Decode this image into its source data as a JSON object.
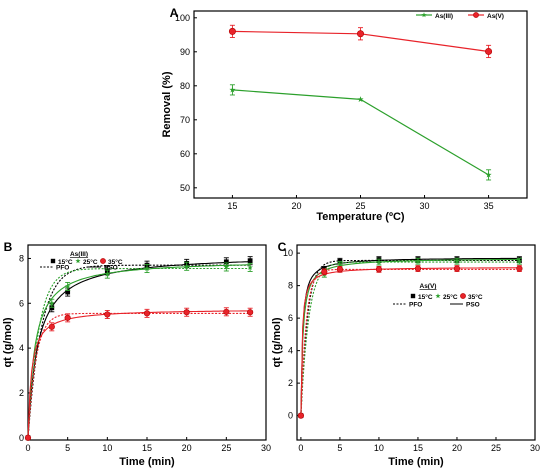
{
  "chart_data": [
    {
      "panel": "A",
      "type": "line",
      "xlabel": "Temperature (ºC)",
      "ylabel": "Removal (%)",
      "xlim": [
        12,
        38
      ],
      "ylim": [
        47,
        102
      ],
      "xticks": [
        15,
        20,
        25,
        30,
        35
      ],
      "yticks": [
        50,
        60,
        70,
        80,
        90,
        100
      ],
      "x": [
        15,
        25,
        35
      ],
      "series": [
        {
          "name": "As(III)",
          "color": "#2ca02c",
          "marker": "star",
          "values": [
            78.8,
            76.0,
            53.8
          ],
          "errors": [
            1.5,
            0,
            1.5
          ]
        },
        {
          "name": "As(V)",
          "color": "#e8232a",
          "marker": "circle",
          "values": [
            96.0,
            95.3,
            90.1
          ],
          "errors": [
            1.8,
            1.8,
            1.8
          ]
        }
      ],
      "legend": "top-right"
    },
    {
      "panel": "B",
      "type": "scatter",
      "xlabel": "Time (min)",
      "ylabel": "qt (g/mol)",
      "xlim": [
        0,
        30
      ],
      "ylim": [
        -0.1,
        8.6
      ],
      "xticks": [
        0,
        5,
        10,
        15,
        20,
        25,
        30
      ],
      "yticks": [
        0,
        2,
        4,
        6,
        8
      ],
      "x": [
        0,
        3,
        5,
        10,
        15,
        20,
        25,
        28
      ],
      "legend_title": "As(III)",
      "temps": [
        "15°C",
        "25°C",
        "35°C"
      ],
      "model_labels": [
        "PFO",
        "PSO"
      ],
      "series": [
        {
          "name": "15°C",
          "color": "#000000",
          "marker": "square",
          "values": [
            0,
            5.8,
            6.5,
            7.45,
            7.7,
            7.78,
            7.85,
            7.9
          ],
          "qe_pfo": 7.7,
          "k_pfo": 0.6,
          "qe_pso": 8.2,
          "k_pso": 0.1
        },
        {
          "name": "25°C",
          "color": "#2ca02c",
          "marker": "star",
          "values": [
            0,
            6.0,
            6.75,
            7.3,
            7.55,
            7.65,
            7.62,
            7.6
          ],
          "qe_pfo": 7.55,
          "k_pfo": 0.75,
          "qe_pso": 7.95,
          "k_pso": 0.15
        },
        {
          "name": "35°C",
          "color": "#e8232a",
          "marker": "circle",
          "values": [
            0,
            4.95,
            5.35,
            5.5,
            5.55,
            5.6,
            5.62,
            5.6
          ],
          "qe_pfo": 5.55,
          "k_pfo": 1.0,
          "qe_pso": 5.75,
          "k_pso": 0.4
        }
      ]
    },
    {
      "panel": "C",
      "type": "scatter",
      "xlabel": "Time (min)",
      "ylabel": "qt (g/mol)",
      "xlim": [
        -0.5,
        30
      ],
      "ylim": [
        -1.5,
        10.5
      ],
      "xticks": [
        0,
        5,
        10,
        15,
        20,
        25,
        30
      ],
      "yticks": [
        0,
        2,
        4,
        6,
        8,
        10
      ],
      "x": [
        0,
        3,
        5,
        10,
        15,
        20,
        28
      ],
      "legend_title": "As(V)",
      "temps": [
        "15°C",
        "25°C",
        "35°C"
      ],
      "model_labels": [
        "PFO",
        "PSO"
      ],
      "series": [
        {
          "name": "15°C",
          "color": "#000000",
          "marker": "square",
          "values": [
            0,
            9.0,
            9.5,
            9.6,
            9.6,
            9.6,
            9.6
          ],
          "qe_pfo": 9.55,
          "k_pfo": 1.2,
          "qe_pso": 9.75,
          "k_pso": 0.5
        },
        {
          "name": "25°C",
          "color": "#2ca02c",
          "marker": "star",
          "values": [
            0,
            8.7,
            9.3,
            9.45,
            9.5,
            9.5,
            9.5
          ],
          "qe_pfo": 9.45,
          "k_pfo": 1.0,
          "qe_pso": 9.7,
          "k_pso": 0.4
        },
        {
          "name": "35°C",
          "color": "#e8232a",
          "marker": "circle",
          "values": [
            0,
            8.85,
            9.0,
            9.0,
            9.05,
            9.05,
            9.05
          ],
          "qe_pfo": 9.0,
          "k_pfo": 1.5,
          "qe_pso": 9.15,
          "k_pso": 0.7
        }
      ]
    }
  ]
}
